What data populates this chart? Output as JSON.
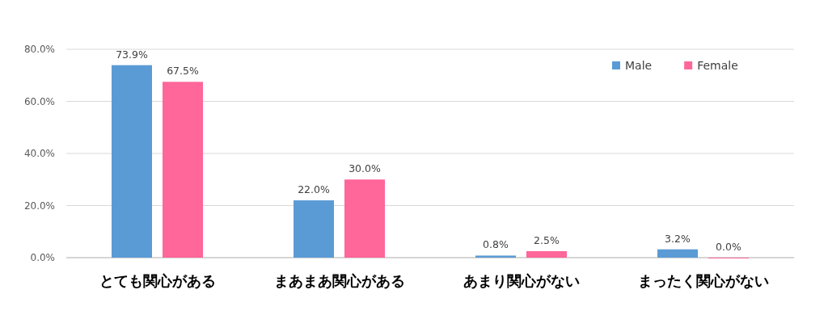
{
  "chart_data": {
    "type": "bar",
    "categories": [
      "とても関心がある",
      "まあまあ関心がある",
      "あまり関心がない",
      "まったく関心がない"
    ],
    "series": [
      {
        "name": "Male",
        "color": "#5b9bd5",
        "values": [
          73.9,
          22.0,
          0.8,
          3.2
        ],
        "value_labels": [
          "73.9%",
          "22.0%",
          "0.8%",
          "3.2%"
        ]
      },
      {
        "name": "Female",
        "color": "#ff6699",
        "values": [
          67.5,
          30.0,
          2.5,
          0.0
        ],
        "value_labels": [
          "67.5%",
          "30.0%",
          "2.5%",
          "0.0%"
        ]
      }
    ],
    "ylim": [
      0,
      80
    ],
    "yticks": [
      {
        "value": 0,
        "label": "0.0%"
      },
      {
        "value": 20,
        "label": "20.0%"
      },
      {
        "value": 40,
        "label": "40.0%"
      },
      {
        "value": 60,
        "label": "60.0%"
      },
      {
        "value": 80,
        "label": "80.0%"
      }
    ],
    "grid": "y",
    "legend": "top right"
  }
}
